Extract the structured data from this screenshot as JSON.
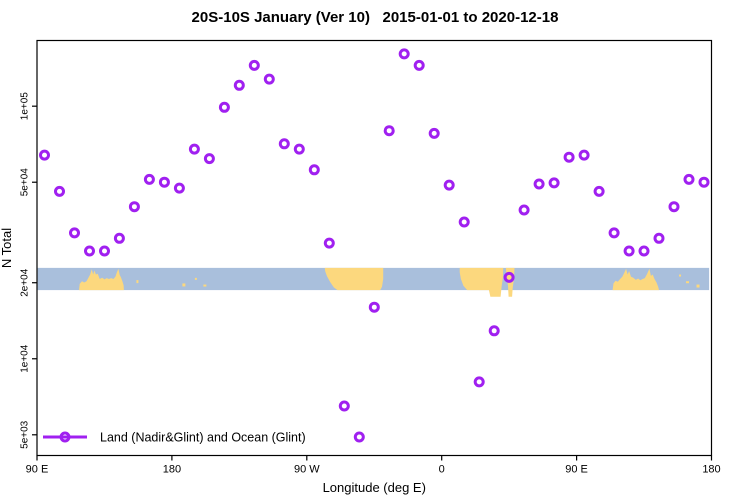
{
  "page": {
    "background": "#ffffff"
  },
  "chart_data": {
    "type": "scatter",
    "title": "20S-10S January (Ver 10)   2015-01-01 to 2020-12-18",
    "xlabel": "Longitude (deg E)",
    "ylabel": "N Total",
    "grid": false,
    "x_axis": {
      "min": 90,
      "max": 540,
      "note": "longitude axis wraps: 90E east around the globe to 180",
      "ticks": [
        {
          "pos": 90,
          "label": "90 E"
        },
        {
          "pos": 180,
          "label": "180"
        },
        {
          "pos": 270,
          "label": "90 W"
        },
        {
          "pos": 360,
          "label": "0"
        },
        {
          "pos": 450,
          "label": "90 E"
        },
        {
          "pos": 540,
          "label": "180"
        }
      ]
    },
    "y_axis": {
      "scale": "log",
      "min": 4140,
      "max": 182000,
      "ticks": [
        {
          "value": 100000,
          "label": "1e+05"
        },
        {
          "value": 50000,
          "label": "5e+04"
        },
        {
          "value": 20000,
          "label": "2e+04"
        },
        {
          "value": 10000,
          "label": "1e+04"
        },
        {
          "value": 5000,
          "label": "5e+03"
        }
      ]
    },
    "legend": {
      "label": "Land (Nadir&Glint) and Ocean (Glint)",
      "position": "bottom-left"
    },
    "series": [
      {
        "name": "Land (Nadir&Glint) and Ocean (Glint)",
        "color": "#A020F0",
        "marker": "open-circle",
        "points": [
          [
            95,
            64000
          ],
          [
            105,
            46000
          ],
          [
            115,
            31500
          ],
          [
            125,
            26700
          ],
          [
            135,
            26700
          ],
          [
            145,
            30000
          ],
          [
            155,
            40000
          ],
          [
            165,
            51300
          ],
          [
            175,
            50000
          ],
          [
            185,
            47400
          ],
          [
            195,
            67600
          ],
          [
            205,
            62000
          ],
          [
            215,
            99000
          ],
          [
            225,
            121000
          ],
          [
            235,
            145000
          ],
          [
            245,
            128000
          ],
          [
            255,
            71000
          ],
          [
            265,
            67600
          ],
          [
            275,
            56000
          ],
          [
            285,
            28700
          ],
          [
            295,
            6500
          ],
          [
            305,
            4900
          ],
          [
            315,
            16000
          ],
          [
            325,
            80000
          ],
          [
            335,
            161000
          ],
          [
            345,
            145000
          ],
          [
            355,
            78000
          ],
          [
            365,
            48700
          ],
          [
            375,
            34800
          ],
          [
            385,
            8100
          ],
          [
            395,
            12900
          ],
          [
            405,
            21000
          ],
          [
            415,
            38800
          ],
          [
            425,
            49200
          ],
          [
            435,
            49700
          ],
          [
            445,
            62800
          ],
          [
            455,
            64000
          ],
          [
            465,
            46000
          ],
          [
            475,
            31500
          ],
          [
            485,
            26700
          ],
          [
            495,
            26700
          ],
          [
            505,
            30000
          ],
          [
            515,
            40000
          ],
          [
            525,
            51300
          ],
          [
            535,
            50000
          ]
        ]
      }
    ],
    "map_strip": {
      "description": "land/ocean strip of the 20S-10S latitude band drawn across the plot",
      "ocean_color": "#A9BFDC",
      "land_color": "#FCD87E",
      "top_value": 22900,
      "bottom_value": 18700,
      "land_polygons": [
        {
          "name": "australia-west-wrap",
          "outline": [
            [
              118,
              1
            ],
            [
              118.5,
              0.72
            ],
            [
              120,
              0.6
            ],
            [
              121.5,
              0.66
            ],
            [
              123,
              0.6
            ],
            [
              124.5,
              0.42
            ],
            [
              125.5,
              0.3
            ],
            [
              126.5,
              0.06
            ],
            [
              127.5,
              0.3
            ],
            [
              128.3,
              0.12
            ],
            [
              129.3,
              0.3
            ],
            [
              130.5,
              0.26
            ],
            [
              131.8,
              0.5
            ],
            [
              133.5,
              0.44
            ],
            [
              135,
              0.52
            ],
            [
              136.5,
              0.46
            ],
            [
              138,
              0.5
            ],
            [
              139.5,
              0.46
            ],
            [
              141,
              0.5
            ],
            [
              142.3,
              0.4
            ],
            [
              143.3,
              0.2
            ],
            [
              144.3,
              0.04
            ],
            [
              145.2,
              0.32
            ],
            [
              146,
              0.42
            ],
            [
              147,
              0.6
            ],
            [
              147.8,
              0.78
            ],
            [
              148,
              1
            ]
          ]
        },
        {
          "name": "south-america",
          "outline": [
            [
              282,
              0
            ],
            [
              321,
              0
            ],
            [
              321,
              0.5
            ],
            [
              320.2,
              0.85
            ],
            [
              319,
              1
            ],
            [
              290.5,
              1
            ],
            [
              288,
              0.88
            ],
            [
              285.5,
              0.62
            ],
            [
              283.5,
              0.38
            ],
            [
              282.3,
              0.15
            ]
          ]
        },
        {
          "name": "africa",
          "outline": [
            [
              372,
              0
            ],
            [
              401,
              0
            ],
            [
              400.8,
              0.45
            ],
            [
              400,
              0.8
            ],
            [
              399.3,
              1.3
            ],
            [
              392.5,
              1.3
            ],
            [
              391.5,
              1
            ],
            [
              377,
              1
            ],
            [
              374.5,
              0.8
            ],
            [
              372.8,
              0.5
            ],
            [
              372,
              0.2
            ]
          ]
        },
        {
          "name": "madagascar",
          "outline": [
            [
              402.8,
              0
            ],
            [
              408.6,
              0
            ],
            [
              408.2,
              0.5
            ],
            [
              407.4,
              0.9
            ],
            [
              407,
              1.3
            ],
            [
              404.6,
              1.3
            ],
            [
              404.2,
              0.8
            ],
            [
              403.2,
              0.4
            ]
          ]
        },
        {
          "name": "australia-east-wrap",
          "outline": [
            [
              474,
              1
            ],
            [
              474.6,
              0.7
            ],
            [
              476,
              0.58
            ],
            [
              477.5,
              0.62
            ],
            [
              479,
              0.5
            ],
            [
              480.5,
              0.4
            ],
            [
              481.8,
              0.22
            ],
            [
              483,
              0.04
            ],
            [
              484,
              0.3
            ],
            [
              485,
              0.14
            ],
            [
              486.3,
              0.4
            ],
            [
              487.8,
              0.44
            ],
            [
              489.5,
              0.54
            ],
            [
              491,
              0.48
            ],
            [
              492.5,
              0.56
            ],
            [
              494,
              0.5
            ],
            [
              495.5,
              0.46
            ],
            [
              497,
              0.28
            ],
            [
              498.6,
              0.04
            ],
            [
              499.6,
              0.36
            ],
            [
              500.8,
              0.3
            ],
            [
              502,
              0.5
            ],
            [
              503.3,
              0.66
            ],
            [
              504.4,
              0.84
            ],
            [
              505,
              1
            ]
          ]
        }
      ],
      "islets": [
        {
          "lon": 157,
          "t": 0.55,
          "w": 2,
          "h": 3
        },
        {
          "lon": 188,
          "t": 0.7,
          "w": 3,
          "h": 3
        },
        {
          "lon": 196,
          "t": 0.45,
          "w": 2,
          "h": 2
        },
        {
          "lon": 202,
          "t": 0.75,
          "w": 3,
          "h": 2
        },
        {
          "lon": 519,
          "t": 0.3,
          "w": 2,
          "h": 2
        },
        {
          "lon": 524,
          "t": 0.6,
          "w": 3,
          "h": 2
        },
        {
          "lon": 531,
          "t": 0.75,
          "w": 3,
          "h": 3
        }
      ]
    }
  }
}
